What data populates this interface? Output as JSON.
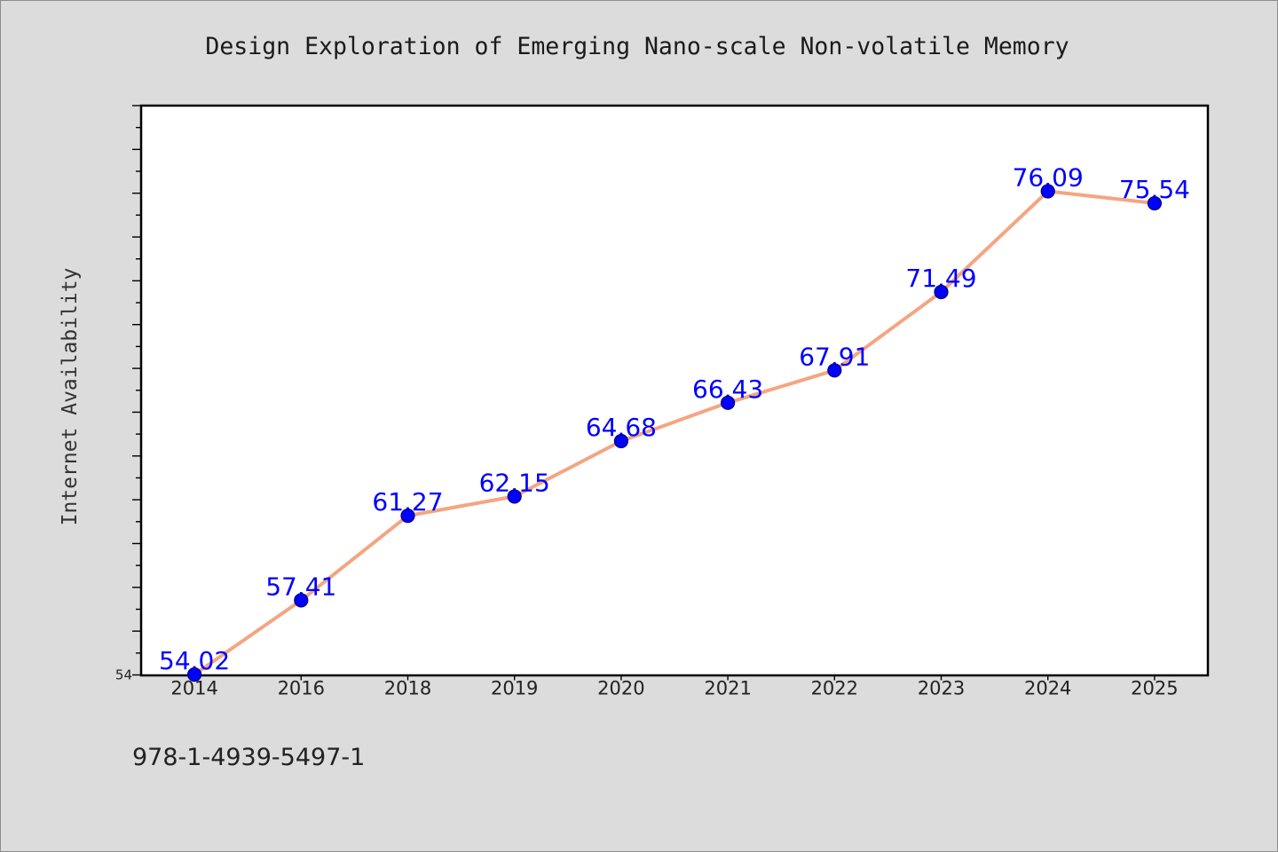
{
  "colors": {
    "page_background": "#dcdcdc",
    "plot_background": "#ffffff",
    "plot_frame": "#000000",
    "line": "#f4a582",
    "marker_fill": "#0000ff",
    "marker_edge": "#00007a",
    "data_label": "#0000ff",
    "text": "#1a1a1a"
  },
  "footer": {
    "text": "978-1-4939-5497-1"
  },
  "chart_data": {
    "type": "line",
    "title": "Design Exploration of Emerging Nano-scale Non-volatile Memory",
    "ylabel": "Internet Availability",
    "categories": [
      "2014",
      "2016",
      "2018",
      "2019",
      "2020",
      "2021",
      "2022",
      "2023",
      "2024",
      "2025"
    ],
    "series": [
      {
        "values": [
          54.02,
          57.41,
          61.27,
          62.15,
          64.68,
          66.43,
          67.91,
          71.49,
          76.09,
          75.54
        ]
      }
    ],
    "ylim": [
      54,
      80
    ],
    "y_tick_step": 1,
    "y_major_tick_step": 2,
    "y_tick_labels": [
      {
        "value": 54,
        "label": "54"
      }
    ],
    "grid": false,
    "legend": "none"
  }
}
